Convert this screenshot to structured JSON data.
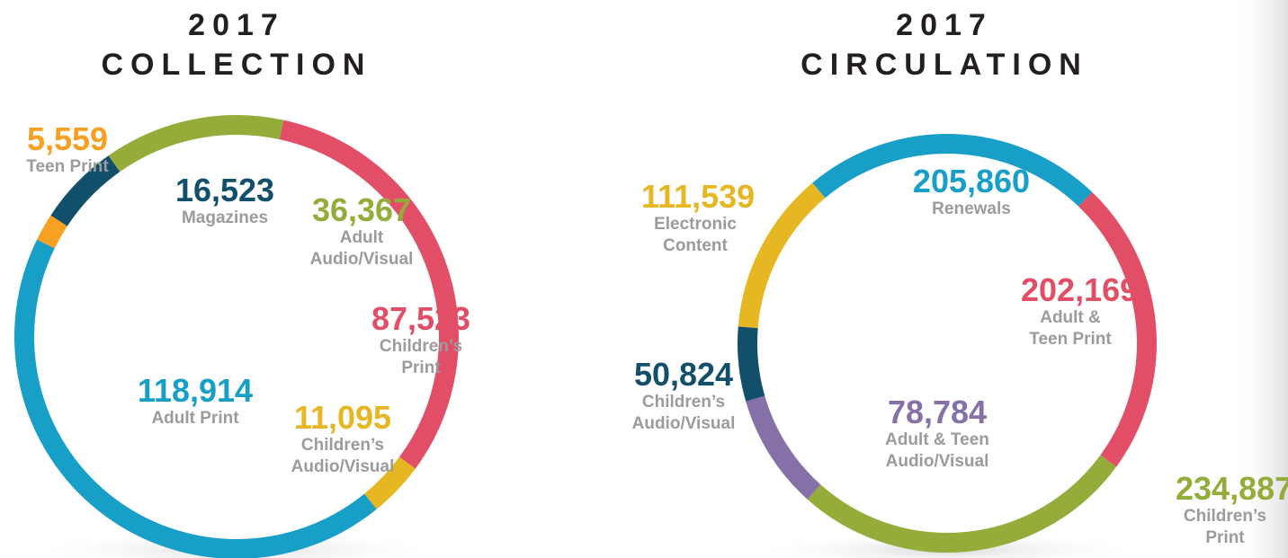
{
  "chart_data": [
    {
      "type": "pie",
      "donut": true,
      "title": "2017",
      "subtitle": "COLLECTION",
      "categories": [
        "Teen Print",
        "Magazines",
        "Adult Audio/Visual",
        "Children’s Print",
        "Children’s Audio/Visual",
        "Adult Print"
      ],
      "values": [
        5559,
        16523,
        36367,
        87523,
        11095,
        118914
      ],
      "value_labels": [
        "5,559",
        "16,523",
        "36,367",
        "87,523",
        "11,095",
        "118,914"
      ],
      "colors": [
        "#f7a021",
        "#124f6b",
        "#94ad3a",
        "#e24e66",
        "#e6b722",
        "#189fc7"
      ]
    },
    {
      "type": "pie",
      "donut": true,
      "title": "2017",
      "subtitle": "CIRCULATION",
      "categories": [
        "Renewals",
        "Adult & Teen Print",
        "Children’s Print",
        "Adult & Teen Audio/Visual",
        "Children’s Audio/Visual",
        "Electronic Content"
      ],
      "values": [
        205860,
        202169,
        234887,
        78784,
        50824,
        111539
      ],
      "value_labels": [
        "205,860",
        "202,169",
        "234,887",
        "78,784",
        "50,824",
        "111,539"
      ],
      "colors": [
        "#189fc7",
        "#e24e66",
        "#94ad3a",
        "#8570a8",
        "#124f6b",
        "#e6b722"
      ]
    }
  ]
}
